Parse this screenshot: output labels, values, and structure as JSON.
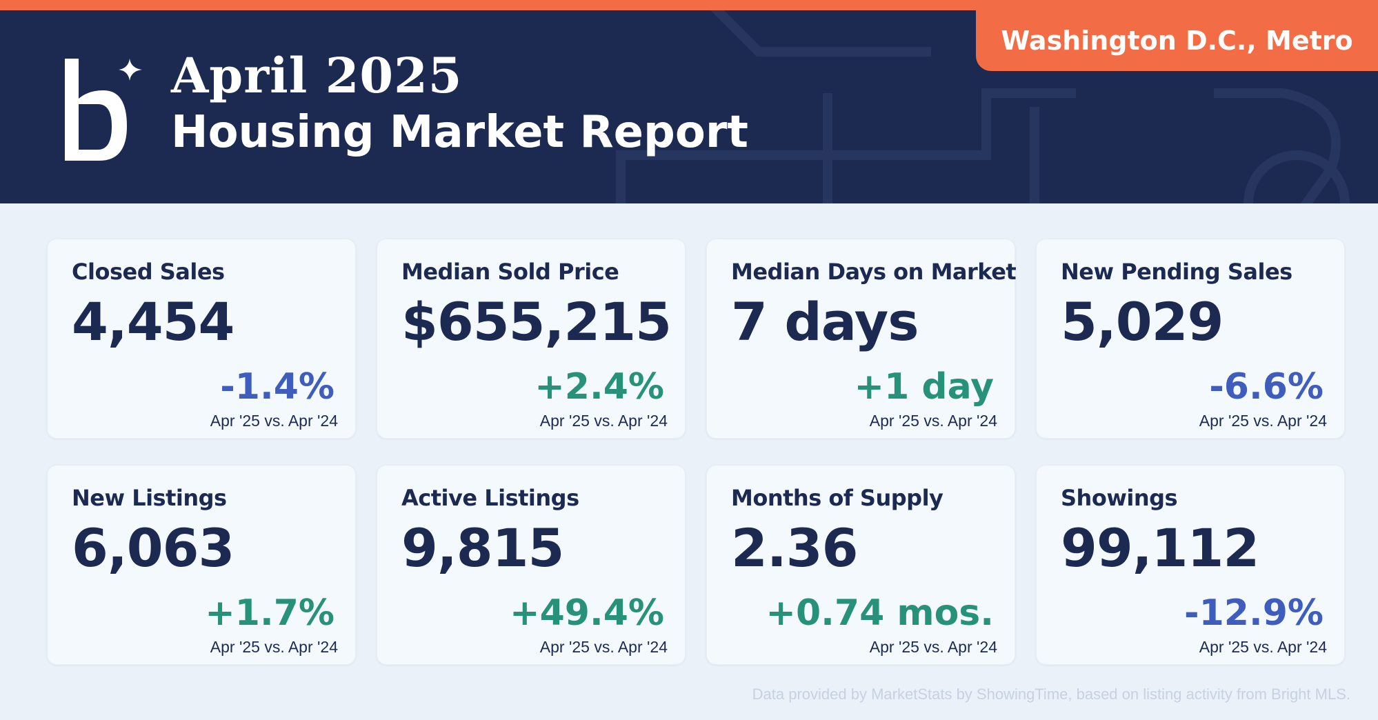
{
  "header": {
    "title_line1": "April 2025",
    "title_line2": "Housing Market Report",
    "region": "Washington D.C., Metro",
    "logo_icon": "b-sparkle-logo"
  },
  "colors": {
    "navy": "#1c2a52",
    "orange": "#f26c45",
    "negative": "#3f5dbd",
    "positive": "#279279",
    "background": "#eaf1f8"
  },
  "metrics": [
    {
      "label": "Closed Sales",
      "value": "4,454",
      "change": "-1.4%",
      "direction": "negative",
      "compare": "Apr '25 vs. Apr '24"
    },
    {
      "label": "Median Sold Price",
      "value": "$655,215",
      "change": "+2.4%",
      "direction": "positive",
      "compare": "Apr '25 vs. Apr '24"
    },
    {
      "label": "Median Days on Market",
      "value": "7 days",
      "change": "+1 day",
      "direction": "positive",
      "compare": "Apr '25 vs. Apr '24"
    },
    {
      "label": "New Pending Sales",
      "value": "5,029",
      "change": "-6.6%",
      "direction": "negative",
      "compare": "Apr '25 vs. Apr '24"
    },
    {
      "label": "New Listings",
      "value": "6,063",
      "change": "+1.7%",
      "direction": "positive",
      "compare": "Apr '25 vs. Apr '24"
    },
    {
      "label": "Active Listings",
      "value": "9,815",
      "change": "+49.4%",
      "direction": "positive",
      "compare": "Apr '25 vs. Apr '24"
    },
    {
      "label": "Months of Supply",
      "value": "2.36",
      "change": "+0.74 mos.",
      "direction": "positive",
      "compare": "Apr '25 vs. Apr '24"
    },
    {
      "label": "Showings",
      "value": "99,112",
      "change": "-12.9%",
      "direction": "negative",
      "compare": "Apr '25 vs. Apr '24"
    }
  ],
  "footer": {
    "note": "Data provided by MarketStats by ShowingTime, based on listing activity from Bright MLS."
  }
}
